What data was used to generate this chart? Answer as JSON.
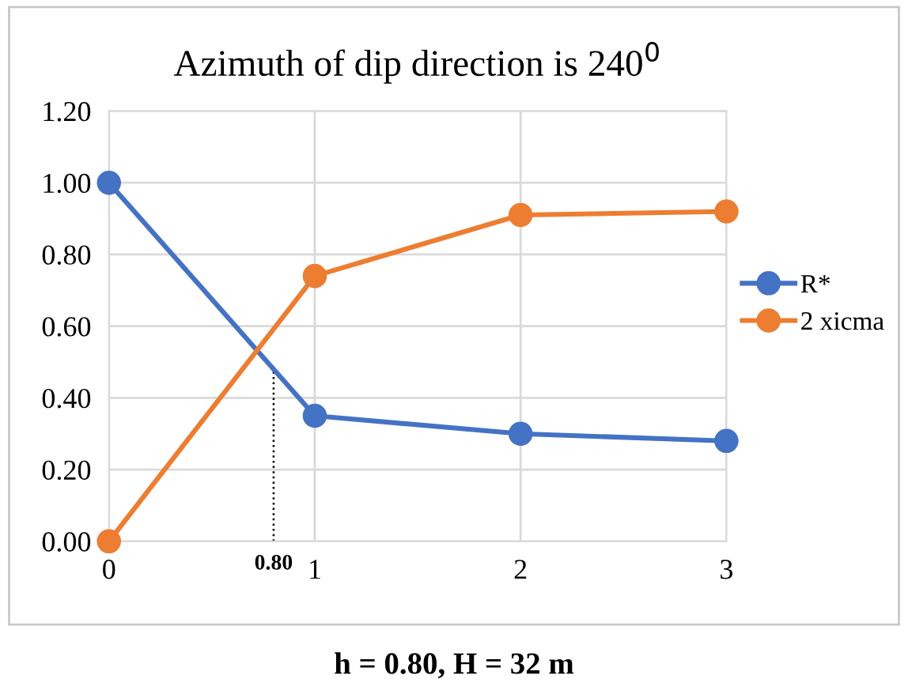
{
  "chart_data": {
    "type": "line",
    "title": "Azimuth of dip direction is 240$^{0}$",
    "x": [
      0,
      1,
      2,
      3
    ],
    "series": [
      {
        "name": "R*",
        "color": "#4472c4",
        "values": [
          1.0,
          0.35,
          0.3,
          0.28
        ]
      },
      {
        "name": "2 xicma",
        "color": "#ed7d31",
        "values": [
          0.0,
          0.74,
          0.91,
          0.92
        ]
      }
    ],
    "xlim": [
      0,
      3
    ],
    "xticks": [
      0,
      1,
      2,
      3
    ],
    "ylim": [
      0,
      1.2
    ],
    "yticks": [
      {
        "value": 0,
        "label": "0.00"
      },
      {
        "value": 0.2,
        "label": "0.20"
      },
      {
        "value": 0.4,
        "label": "0.40"
      },
      {
        "value": 0.6,
        "label": "0.60"
      },
      {
        "value": 0.8,
        "label": "0.80"
      },
      {
        "value": 1.0,
        "label": "1.00"
      },
      {
        "value": 1.2,
        "label": "1.20"
      }
    ],
    "ref_lines": [
      {
        "axis": "x",
        "value": 0.8,
        "label": "0.80",
        "color": "#000000",
        "line_style": "dotted"
      }
    ],
    "annotations": [
      "h = 0.80, H = 32 m"
    ],
    "grid": true,
    "legend": "right",
    "marker": "circle",
    "line_style": "solid"
  }
}
